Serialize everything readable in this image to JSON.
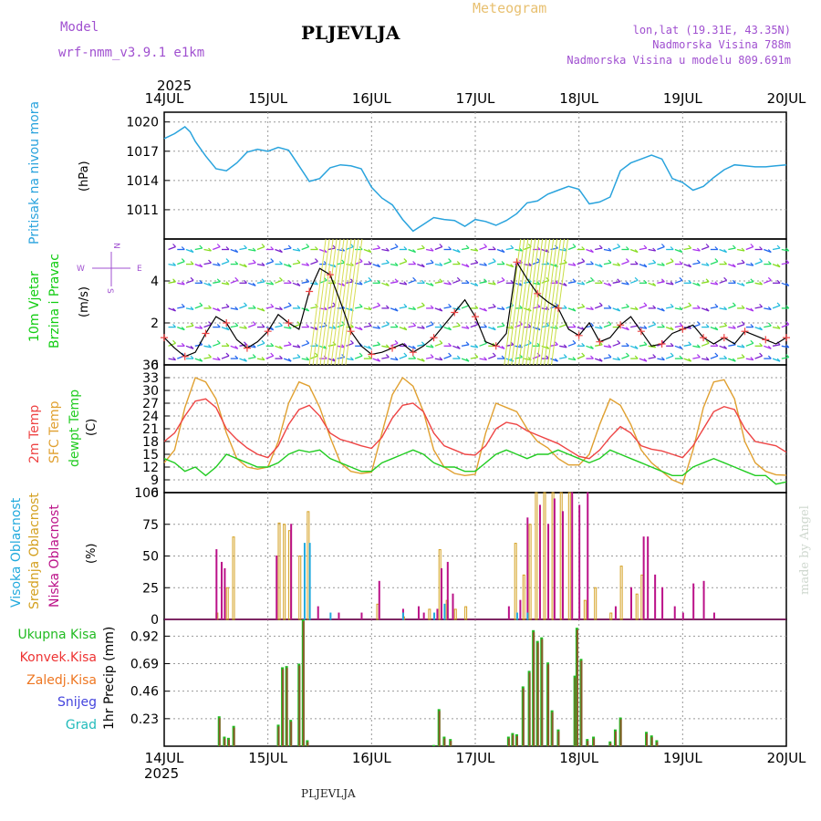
{
  "header": {
    "model_label": "Model",
    "model_name": "wrf-nmm_v3.9.1 e1km",
    "station": "PLJEVLJA",
    "title": "Meteogram",
    "coords": "lon,lat (19.31E, 43.35N)",
    "elevation": "Nadmorska Visina 788m",
    "model_elevation": "Nadmorska Visina u modelu 809.691m",
    "year_top": "2025",
    "year_bottom": "2025",
    "footer_station": "PLJEVLJA",
    "credit": "made by Angel"
  },
  "colors": {
    "pressure": "#29a3dd",
    "wind": "#11cc11",
    "temp2m": "#ee4444",
    "sfc": "#e0a030",
    "dewpt": "#22cc22",
    "high_cloud": "#22aadd",
    "mid_cloud": "#d4a020",
    "low_cloud": "#bb1188",
    "precip_total": "#22bb22",
    "precip_conv": "#ee3333",
    "precip_frozen": "#ee7722",
    "snow": "#4444dd",
    "hail": "#22bbbb",
    "header_purple": "#a050d0",
    "title_gold": "#e8c070"
  },
  "chart_data": {
    "x_ticks": [
      "14JUL",
      "15JUL",
      "16JUL",
      "17JUL",
      "18JUL",
      "19JUL",
      "20JUL"
    ],
    "pressure": {
      "ylabel": "Pritisak na nivou mora",
      "unit": "(hPa)",
      "yticks": [
        "1020",
        "1017",
        "1014",
        "1011"
      ],
      "ylim": [
        1008,
        1021
      ],
      "t": [
        0,
        0.1,
        0.2,
        0.25,
        0.3,
        0.4,
        0.5,
        0.6,
        0.7,
        0.8,
        0.9,
        1.0,
        1.1,
        1.2,
        1.3,
        1.4,
        1.5,
        1.6,
        1.7,
        1.8,
        1.9,
        2.0,
        2.1,
        2.2,
        2.3,
        2.4,
        2.5,
        2.6,
        2.7,
        2.8,
        2.9,
        3.0,
        3.1,
        3.2,
        3.3,
        3.4,
        3.5,
        3.6,
        3.7,
        3.8,
        3.9,
        4.0,
        4.1,
        4.2,
        4.3,
        4.4,
        4.5,
        4.6,
        4.7,
        4.8,
        4.9,
        5.0,
        5.1,
        5.2,
        5.3,
        5.4,
        5.5,
        5.6,
        5.7,
        5.8,
        5.9,
        6.0
      ],
      "values": [
        1018.3,
        1018.8,
        1019.5,
        1019.0,
        1018.0,
        1016.5,
        1015.2,
        1015.0,
        1015.8,
        1016.9,
        1017.2,
        1017.0,
        1017.4,
        1017.1,
        1015.5,
        1013.9,
        1014.2,
        1015.3,
        1015.6,
        1015.5,
        1015.2,
        1013.3,
        1012.2,
        1011.5,
        1010.0,
        1008.8,
        1009.5,
        1010.2,
        1010.0,
        1009.9,
        1009.3,
        1010.0,
        1009.8,
        1009.4,
        1009.9,
        1010.6,
        1011.7,
        1011.9,
        1012.6,
        1013.0,
        1013.4,
        1013.1,
        1011.6,
        1011.8,
        1012.3,
        1015.0,
        1015.8,
        1016.2,
        1016.6,
        1016.2,
        1014.2,
        1013.8,
        1013.0,
        1013.4,
        1014.3,
        1015.1,
        1015.6,
        1015.5,
        1015.4,
        1015.4,
        1015.5,
        1015.6
      ]
    },
    "wind": {
      "ylabel1": "10m Vjetar",
      "ylabel2": "Brzina i Pravac",
      "unit": "(m/s)",
      "yticks": [
        "0",
        "2",
        "4"
      ],
      "ylim": [
        0,
        6
      ],
      "compass_n": "N",
      "compass_s": "S",
      "compass_w": "W",
      "compass_e": "E",
      "t": [
        0,
        0.1,
        0.2,
        0.3,
        0.4,
        0.5,
        0.6,
        0.7,
        0.8,
        0.9,
        1.0,
        1.1,
        1.2,
        1.3,
        1.4,
        1.5,
        1.6,
        1.7,
        1.8,
        1.9,
        2.0,
        2.1,
        2.2,
        2.3,
        2.4,
        2.5,
        2.6,
        2.7,
        2.8,
        2.9,
        3.0,
        3.1,
        3.2,
        3.3,
        3.4,
        3.5,
        3.6,
        3.7,
        3.8,
        3.9,
        4.0,
        4.1,
        4.2,
        4.3,
        4.4,
        4.5,
        4.6,
        4.7,
        4.8,
        4.9,
        5.0,
        5.1,
        5.2,
        5.3,
        5.4,
        5.5,
        5.6,
        5.7,
        5.8,
        5.9,
        6.0
      ],
      "values": [
        1.3,
        0.8,
        0.4,
        0.6,
        1.5,
        2.3,
        2.0,
        1.2,
        0.8,
        1.1,
        1.6,
        2.4,
        2.0,
        1.7,
        3.5,
        4.6,
        4.3,
        3.0,
        1.6,
        0.9,
        0.5,
        0.6,
        0.8,
        1.0,
        0.6,
        0.9,
        1.3,
        1.9,
        2.5,
        3.1,
        2.3,
        1.1,
        0.9,
        1.5,
        4.9,
        4.1,
        3.4,
        3.0,
        2.7,
        1.7,
        1.4,
        2.0,
        1.1,
        1.3,
        1.9,
        2.3,
        1.6,
        0.9,
        1.0,
        1.5,
        1.7,
        1.9,
        1.3,
        1.0,
        1.3,
        1.0,
        1.6,
        1.4,
        1.2,
        1.0,
        1.3
      ]
    },
    "temperature": {
      "ylabel_2m": "2m Temp",
      "ylabel_sfc": "SFC Temp",
      "ylabel_dew": "dewpt Temp",
      "unit": "(C)",
      "yticks": [
        "6",
        "9",
        "12",
        "15",
        "18",
        "21",
        "24",
        "27",
        "30",
        "33",
        "36"
      ],
      "ylim": [
        6,
        36
      ],
      "t": [
        0,
        0.1,
        0.2,
        0.3,
        0.4,
        0.5,
        0.6,
        0.7,
        0.8,
        0.9,
        1.0,
        1.1,
        1.2,
        1.3,
        1.4,
        1.5,
        1.6,
        1.7,
        1.8,
        1.9,
        2.0,
        2.1,
        2.2,
        2.3,
        2.4,
        2.5,
        2.6,
        2.7,
        2.8,
        2.9,
        3.0,
        3.1,
        3.2,
        3.3,
        3.4,
        3.5,
        3.6,
        3.7,
        3.8,
        3.9,
        4.0,
        4.1,
        4.2,
        4.3,
        4.4,
        4.5,
        4.6,
        4.7,
        4.8,
        4.9,
        5.0,
        5.1,
        5.2,
        5.3,
        5.4,
        5.5,
        5.6,
        5.7,
        5.8,
        5.9,
        6.0
      ],
      "temp2m": [
        18,
        20,
        24,
        27.5,
        28,
        26,
        21,
        18.5,
        16.5,
        15,
        14.2,
        17,
        22,
        25.5,
        26.5,
        24,
        20,
        18.5,
        17.8,
        17,
        16.4,
        19,
        23.5,
        26.5,
        27,
        25,
        20,
        17,
        16,
        15,
        14.8,
        17,
        21,
        22.5,
        22,
        20.5,
        19.5,
        18.5,
        17.5,
        16,
        14.5,
        14,
        16,
        19,
        21.5,
        20,
        17,
        16.2,
        15.8,
        15,
        14.2,
        17,
        21,
        25,
        26.2,
        25.5,
        21,
        18,
        17.5,
        17,
        15.5
      ],
      "sfc": [
        13,
        16,
        26,
        33,
        32,
        28,
        20,
        14,
        12,
        11.5,
        12,
        18,
        27,
        32,
        31,
        26,
        19,
        13,
        11,
        10.5,
        10.8,
        20,
        29,
        33,
        31,
        25,
        16,
        12,
        10.5,
        10,
        10.3,
        20,
        27,
        26,
        25,
        21,
        18,
        16.5,
        14,
        12.5,
        12.5,
        15,
        22,
        28,
        26.5,
        22,
        16,
        13,
        11,
        9,
        8,
        16,
        26,
        32,
        32.5,
        28,
        18,
        13,
        11,
        10.2,
        10.1
      ],
      "dewpt": [
        14,
        13,
        11,
        12,
        10,
        12,
        15,
        14,
        13,
        12,
        12,
        13,
        15,
        16,
        15.5,
        16,
        14,
        13,
        12,
        11,
        11,
        13,
        14,
        15,
        16,
        15,
        13,
        12,
        12,
        11,
        11,
        13,
        15,
        16,
        15,
        14,
        15,
        15,
        16,
        15,
        14,
        13,
        14,
        16,
        15,
        14,
        13,
        12,
        11,
        10,
        10,
        12,
        13,
        14,
        13,
        12,
        11,
        10,
        10,
        8,
        8.5
      ]
    },
    "clouds": {
      "ylabel_high": "Visoka Oblacnost",
      "ylabel_mid": "Srednja Oblacnost",
      "ylabel_low": "Niska Oblacnost",
      "unit": "(%)",
      "yticks": [
        "0",
        "25",
        "50",
        "75",
        "100"
      ],
      "ylim": [
        0,
        100
      ],
      "high": [
        [
          1.4,
          60
        ],
        [
          1.35,
          60
        ],
        [
          1.6,
          5
        ],
        [
          2.3,
          5
        ],
        [
          2.6,
          5
        ],
        [
          2.7,
          12
        ],
        [
          3.4,
          5
        ],
        [
          3.5,
          5
        ]
      ],
      "mid": [
        [
          0.5,
          5
        ],
        [
          0.6,
          25
        ],
        [
          0.66,
          65
        ],
        [
          1.1,
          76
        ],
        [
          1.15,
          75
        ],
        [
          1.2,
          70
        ],
        [
          1.3,
          50
        ],
        [
          1.38,
          85
        ],
        [
          2.05,
          12
        ],
        [
          2.3,
          2
        ],
        [
          2.55,
          8
        ],
        [
          2.65,
          55
        ],
        [
          2.72,
          15
        ],
        [
          2.8,
          8
        ],
        [
          2.9,
          10
        ],
        [
          3.38,
          60
        ],
        [
          3.46,
          35
        ],
        [
          3.52,
          75
        ],
        [
          3.58,
          100
        ],
        [
          3.66,
          100
        ],
        [
          3.74,
          100
        ],
        [
          3.82,
          100
        ],
        [
          3.9,
          100
        ],
        [
          4.05,
          15
        ],
        [
          4.15,
          25
        ],
        [
          4.3,
          5
        ],
        [
          4.4,
          42
        ],
        [
          4.55,
          20
        ],
        [
          4.6,
          35
        ]
      ],
      "low": [
        [
          0.5,
          55
        ],
        [
          0.55,
          45
        ],
        [
          0.58,
          40
        ],
        [
          1.08,
          50
        ],
        [
          1.22,
          75
        ],
        [
          1.48,
          10
        ],
        [
          1.68,
          5
        ],
        [
          1.9,
          5
        ],
        [
          2.07,
          30
        ],
        [
          2.3,
          8
        ],
        [
          2.45,
          10
        ],
        [
          2.5,
          5
        ],
        [
          2.63,
          8
        ],
        [
          2.67,
          40
        ],
        [
          2.73,
          45
        ],
        [
          2.78,
          20
        ],
        [
          3.32,
          10
        ],
        [
          3.43,
          15
        ],
        [
          3.5,
          80
        ],
        [
          3.62,
          90
        ],
        [
          3.7,
          75
        ],
        [
          3.76,
          95
        ],
        [
          3.84,
          85
        ],
        [
          3.93,
          100
        ],
        [
          4.0,
          90
        ],
        [
          4.08,
          100
        ],
        [
          4.35,
          10
        ],
        [
          4.5,
          25
        ],
        [
          4.62,
          65
        ],
        [
          4.66,
          65
        ],
        [
          4.73,
          35
        ],
        [
          4.8,
          25
        ],
        [
          4.92,
          10
        ],
        [
          5.0,
          5
        ],
        [
          5.1,
          28
        ],
        [
          5.2,
          30
        ],
        [
          5.3,
          5
        ]
      ]
    },
    "precip": {
      "labels": [
        "Ukupna Kisa",
        "Konvek.Kisa",
        "Zaledj.Kisa",
        "Snijeg",
        "Grad"
      ],
      "ylabel": "1hr Precip (mm)",
      "yticks": [
        "0.23",
        "0.46",
        "0.69",
        "0.92"
      ],
      "ylim": [
        0,
        1.06
      ],
      "bars": [
        [
          0.53,
          0.25
        ],
        [
          0.58,
          0.08
        ],
        [
          0.62,
          0.07
        ],
        [
          0.67,
          0.17
        ],
        [
          1.1,
          0.18
        ],
        [
          1.14,
          0.66
        ],
        [
          1.18,
          0.67
        ],
        [
          1.22,
          0.22
        ],
        [
          1.3,
          0.69
        ],
        [
          1.34,
          1.06
        ],
        [
          1.38,
          0.05
        ],
        [
          2.6,
          0.01
        ],
        [
          2.65,
          0.31
        ],
        [
          2.7,
          0.08
        ],
        [
          2.76,
          0.06
        ],
        [
          3.32,
          0.08
        ],
        [
          3.36,
          0.11
        ],
        [
          3.4,
          0.1
        ],
        [
          3.46,
          0.5
        ],
        [
          3.52,
          0.63
        ],
        [
          3.56,
          0.97
        ],
        [
          3.6,
          0.88
        ],
        [
          3.64,
          0.91
        ],
        [
          3.7,
          0.7
        ],
        [
          3.74,
          0.3
        ],
        [
          3.8,
          0.14
        ],
        [
          3.96,
          0.59
        ],
        [
          3.98,
          0.99
        ],
        [
          4.02,
          0.73
        ],
        [
          4.08,
          0.06
        ],
        [
          4.14,
          0.08
        ],
        [
          4.3,
          0.04
        ],
        [
          4.35,
          0.14
        ],
        [
          4.4,
          0.24
        ],
        [
          4.65,
          0.12
        ],
        [
          4.7,
          0.09
        ],
        [
          4.75,
          0.05
        ]
      ]
    }
  }
}
